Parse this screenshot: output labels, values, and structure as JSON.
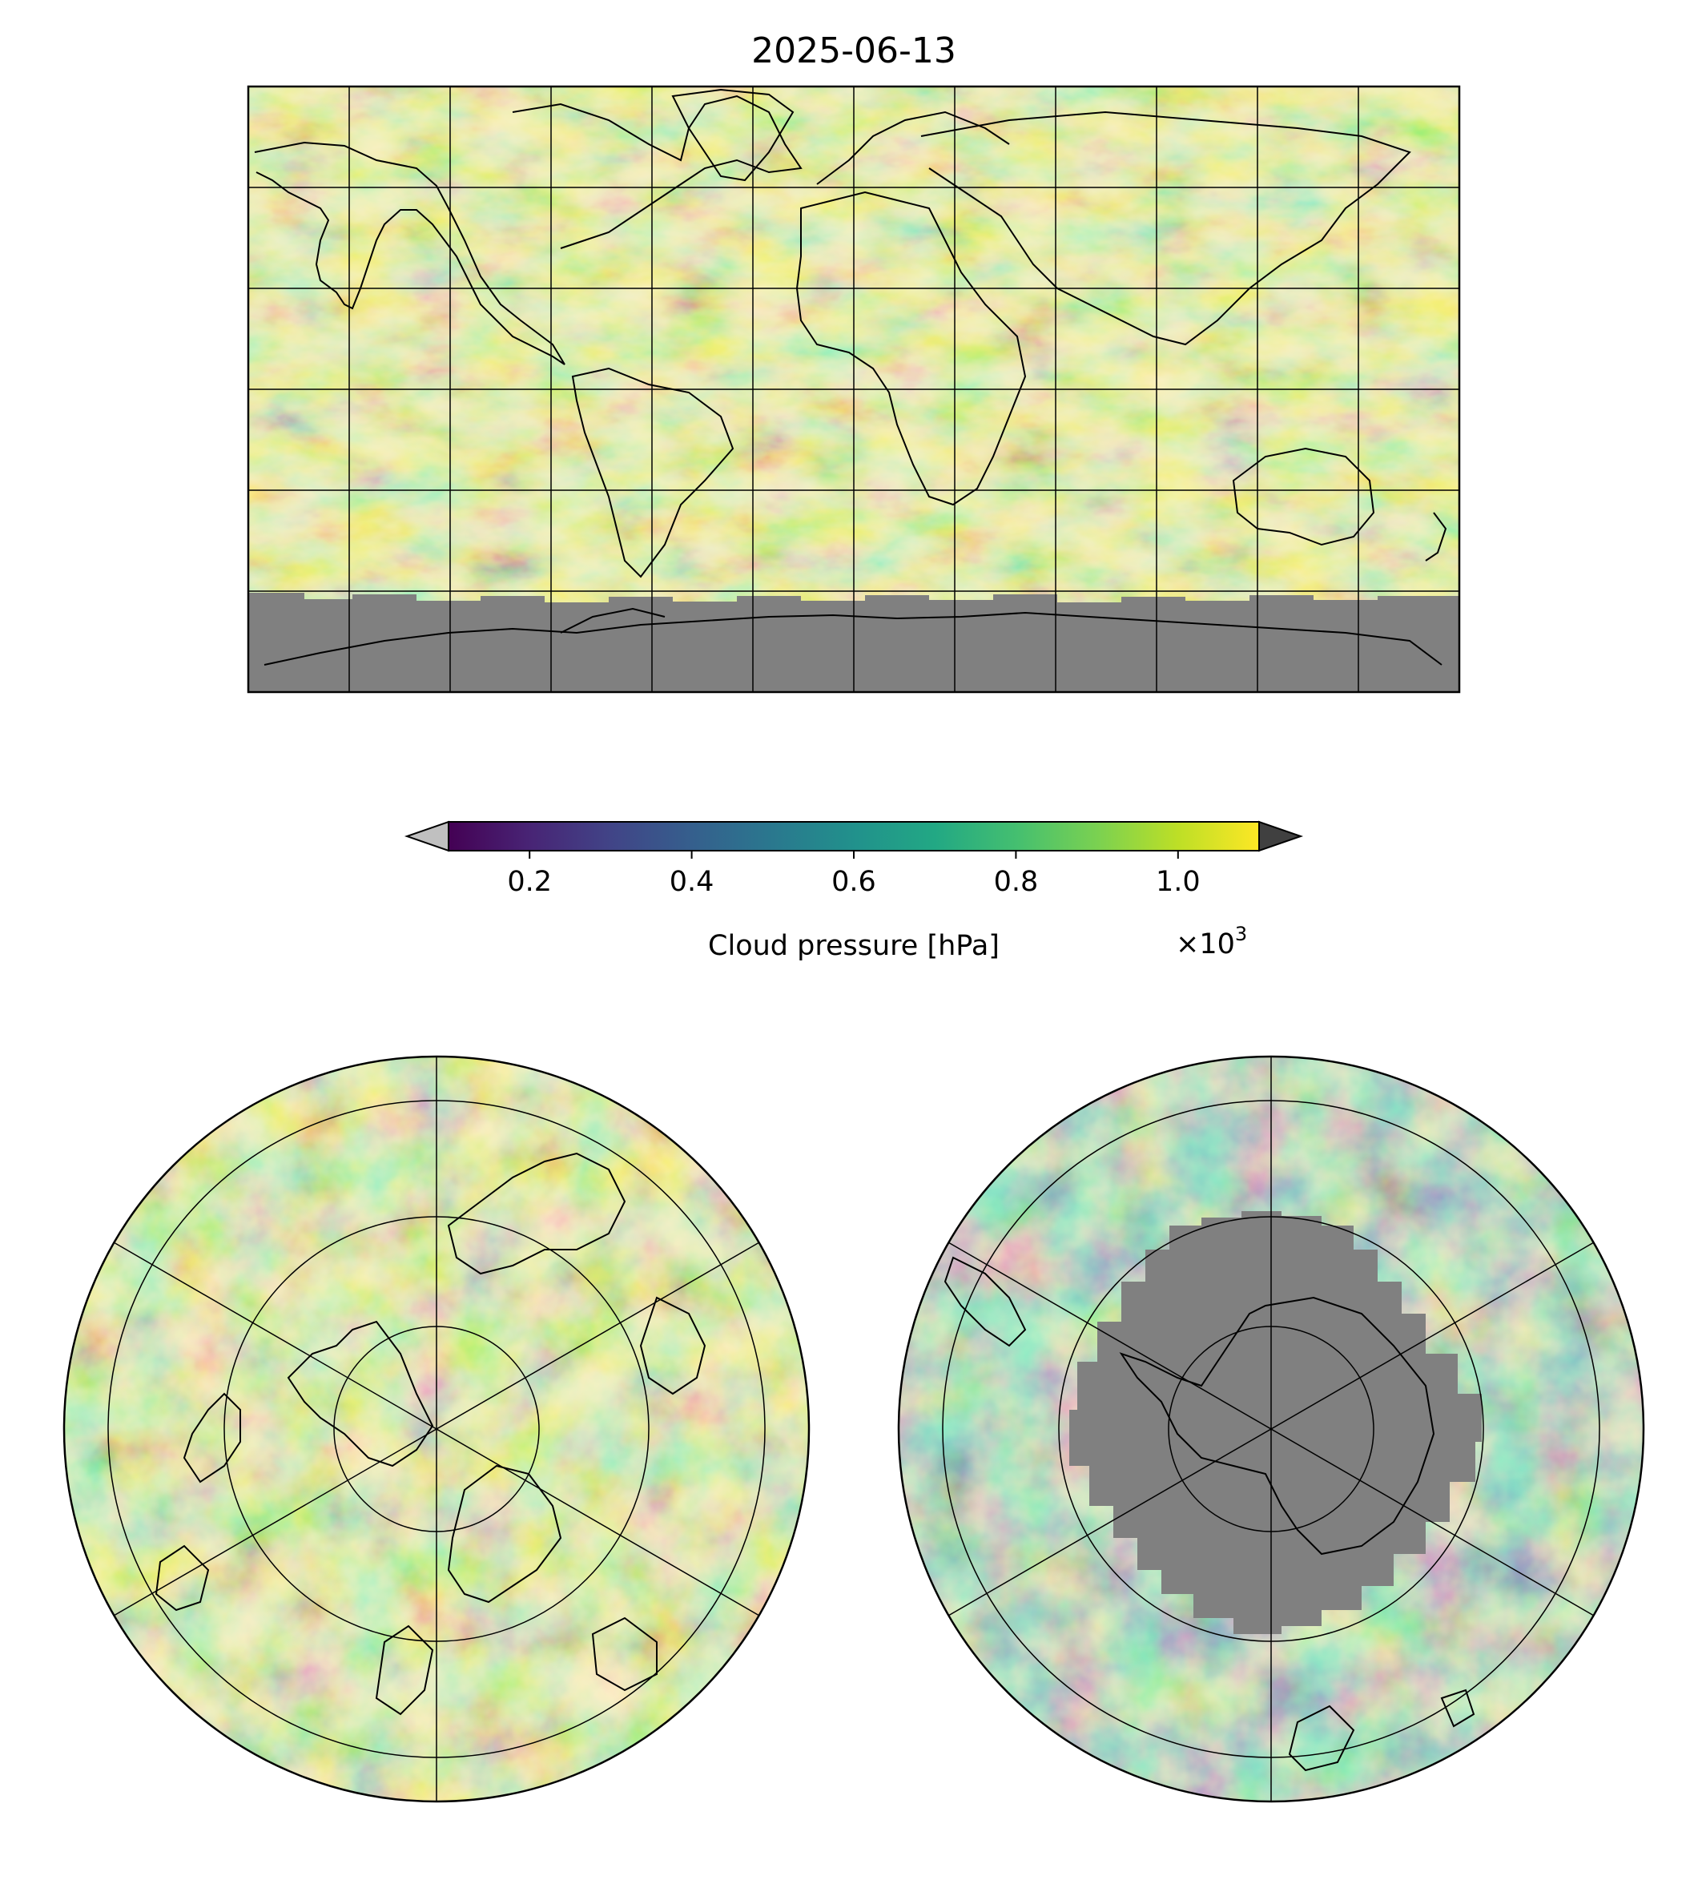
{
  "figure": {
    "title": "2025-06-13"
  },
  "colorbar": {
    "label": "Cloud pressure [hPa]",
    "ticks": [
      "0.2",
      "0.4",
      "0.6",
      "0.8",
      "1.0"
    ],
    "tick_values": [
      0.2,
      0.4,
      0.6,
      0.8,
      1.0
    ],
    "scale_base": "×10",
    "scale_exponent": "3",
    "range_min": 0.1,
    "range_max": 1.1,
    "extend": "both",
    "colormap": "viridis",
    "under_color": "#c0c0c0",
    "over_color": "#404040",
    "missing_color": "#808080"
  },
  "maps": [
    {
      "name": "global",
      "projection": "equirectangular"
    },
    {
      "name": "north-polar",
      "projection": "north polar stereographic"
    },
    {
      "name": "south-polar",
      "projection": "south polar stereographic"
    }
  ]
}
